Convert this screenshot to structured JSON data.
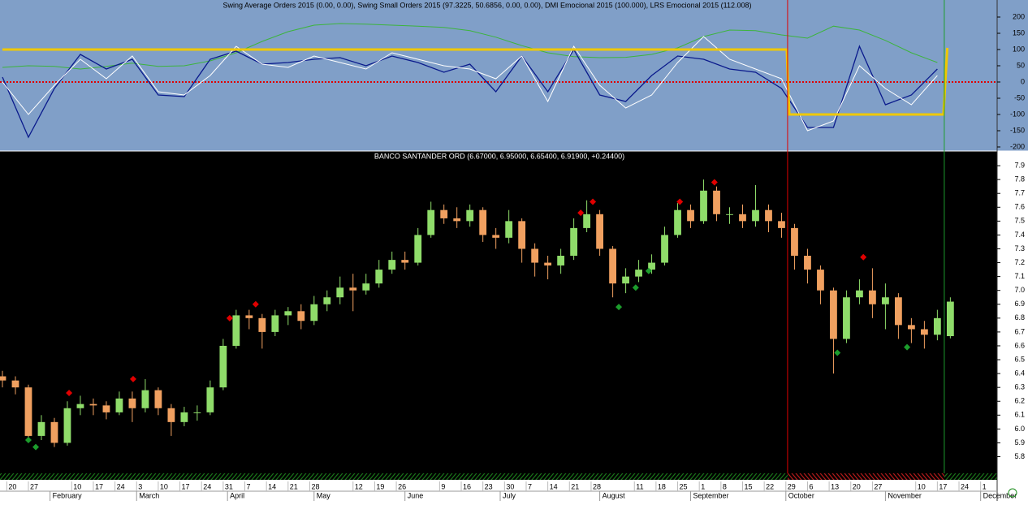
{
  "chart_data": [
    {
      "type": "line",
      "title": "Swing Average Orders 2015 (0.00, 0.00), Swing Small Orders 2015 (97.3225, 50.6856, 0.00, 0.00), DMI Emocional 2015 (100.000), LRS Emocional 2015 (112.008)",
      "xlim": [
        0,
        230
      ],
      "ylim": [
        -210,
        250
      ],
      "yticks": [
        200,
        150,
        100,
        50,
        0,
        -50,
        -100,
        -150,
        -200
      ],
      "zero_line": 0,
      "zero_color": "#e00000",
      "series": [
        {
          "color": "#3cb43c",
          "width": 1,
          "x": [
            0,
            6,
            12,
            18,
            24,
            30,
            36,
            42,
            48,
            54,
            60,
            66,
            72,
            78,
            84,
            90,
            96,
            102,
            108,
            114,
            120,
            126,
            132,
            138,
            144,
            150,
            156,
            162,
            168,
            174,
            180,
            186,
            192,
            198,
            204,
            210,
            216
          ],
          "values": [
            45,
            50,
            48,
            40,
            48,
            58,
            48,
            50,
            65,
            90,
            125,
            155,
            175,
            180,
            178,
            175,
            172,
            168,
            158,
            138,
            112,
            90,
            78,
            75,
            76,
            85,
            105,
            140,
            160,
            158,
            145,
            135,
            172,
            160,
            128,
            90,
            60
          ]
        },
        {
          "color": "#0a1a8c",
          "width": 1.3,
          "x": [
            0,
            6,
            12,
            18,
            24,
            30,
            36,
            42,
            48,
            54,
            60,
            66,
            72,
            78,
            84,
            90,
            96,
            102,
            108,
            114,
            120,
            126,
            132,
            138,
            144,
            150,
            156,
            162,
            168,
            174,
            180,
            186,
            192,
            198,
            204,
            210,
            216
          ],
          "values": [
            15,
            -170,
            -20,
            85,
            40,
            70,
            -40,
            -45,
            70,
            95,
            55,
            60,
            70,
            75,
            50,
            80,
            60,
            30,
            55,
            -30,
            80,
            -30,
            100,
            -40,
            -60,
            20,
            80,
            70,
            40,
            30,
            -20,
            -140,
            -140,
            110,
            -70,
            -40,
            40
          ]
        },
        {
          "color": "#ffffff",
          "width": 1,
          "x": [
            0,
            6,
            12,
            18,
            24,
            30,
            36,
            42,
            48,
            54,
            60,
            66,
            72,
            78,
            84,
            90,
            96,
            102,
            108,
            114,
            120,
            126,
            132,
            138,
            144,
            150,
            156,
            162,
            168,
            174,
            180,
            186,
            192,
            198,
            204,
            210,
            216
          ],
          "values": [
            0,
            -100,
            -10,
            70,
            10,
            80,
            -30,
            -40,
            20,
            110,
            55,
            45,
            80,
            60,
            40,
            90,
            70,
            50,
            40,
            10,
            80,
            -60,
            110,
            -10,
            -80,
            -40,
            60,
            140,
            70,
            40,
            10,
            -150,
            -120,
            50,
            -20,
            -70,
            20
          ]
        },
        {
          "color": "#f0c800",
          "width": 3,
          "x": [
            0,
            181.2,
            181.8,
            217.4,
            218.3
          ],
          "values": [
            100,
            100,
            -100,
            -100,
            105
          ]
        }
      ]
    },
    {
      "type": "candlestick",
      "title": "BANCO SANTANDER ORD (6.67000, 6.95000, 6.65400, 6.91900, +0.24400)",
      "xlim": [
        0,
        230
      ],
      "ylim": [
        5.68,
        8.0
      ],
      "yticks": [
        7.9,
        7.8,
        7.7,
        7.6,
        7.5,
        7.4,
        7.3,
        7.2,
        7.1,
        {
          "value": 7,
          "label": "7.0"
        },
        6.9,
        6.8,
        6.7,
        6.6,
        6.5,
        6.4,
        6.3,
        6.2,
        6.1,
        {
          "value": 6,
          "label": "6.0"
        },
        5.9,
        5.8
      ],
      "xticks": [
        {
          "value": 1,
          "label": "20"
        },
        {
          "value": 6,
          "label": "27"
        },
        {
          "value": 16,
          "label": "10"
        },
        {
          "value": 21,
          "label": "17"
        },
        {
          "value": 26,
          "label": "24"
        },
        {
          "value": 31,
          "label": "3"
        },
        {
          "value": 36,
          "label": "10"
        },
        {
          "value": 41,
          "label": "17"
        },
        {
          "value": 46,
          "label": "24"
        },
        {
          "value": 51,
          "label": "31"
        },
        {
          "value": 56,
          "label": "7"
        },
        {
          "value": 61,
          "label": "14"
        },
        {
          "value": 66,
          "label": "21"
        },
        {
          "value": 71,
          "label": "28"
        },
        {
          "value": 81,
          "label": "12"
        },
        {
          "value": 86,
          "label": "19"
        },
        {
          "value": 91,
          "label": "26"
        },
        {
          "value": 101,
          "label": "9"
        },
        {
          "value": 106,
          "label": "16"
        },
        {
          "value": 111,
          "label": "23"
        },
        {
          "value": 116,
          "label": "30"
        },
        {
          "value": 121,
          "label": "7"
        },
        {
          "value": 126,
          "label": "14"
        },
        {
          "value": 131,
          "label": "21"
        },
        {
          "value": 136,
          "label": "28"
        },
        {
          "value": 146,
          "label": "11"
        },
        {
          "value": 151,
          "label": "18"
        },
        {
          "value": 156,
          "label": "25"
        },
        {
          "value": 161,
          "label": "1"
        },
        {
          "value": 166,
          "label": "8"
        },
        {
          "value": 171,
          "label": "15"
        },
        {
          "value": 176,
          "label": "22"
        },
        {
          "value": 181,
          "label": "29"
        },
        {
          "value": 186,
          "label": "6"
        },
        {
          "value": 191,
          "label": "13"
        },
        {
          "value": 196,
          "label": "20"
        },
        {
          "value": 201,
          "label": "27"
        },
        {
          "value": 211,
          "label": "10"
        },
        {
          "value": 216,
          "label": "17"
        },
        {
          "value": 221,
          "label": "24"
        },
        {
          "value": 226,
          "label": "1"
        }
      ],
      "months": [
        {
          "value": 11,
          "label": "February"
        },
        {
          "value": 31,
          "label": "March"
        },
        {
          "value": 52,
          "label": "April"
        },
        {
          "value": 72,
          "label": "May"
        },
        {
          "value": 93,
          "label": "June"
        },
        {
          "value": 115,
          "label": "July"
        },
        {
          "value": 138,
          "label": "August"
        },
        {
          "value": 159,
          "label": "September"
        },
        {
          "value": 181,
          "label": "October"
        },
        {
          "value": 204,
          "label": "November"
        },
        {
          "value": 226,
          "label": "December"
        }
      ],
      "up_color": "#8fdc6a",
      "down_color": "#f0a060",
      "x": [
        0,
        3,
        6,
        9,
        12,
        15,
        18,
        21,
        24,
        27,
        30,
        33,
        36,
        39,
        42,
        45,
        48,
        51,
        54,
        57,
        60,
        63,
        66,
        69,
        72,
        75,
        78,
        81,
        84,
        87,
        90,
        93,
        96,
        99,
        102,
        105,
        108,
        111,
        114,
        117,
        120,
        123,
        126,
        129,
        132,
        135,
        138,
        141,
        144,
        147,
        150,
        153,
        156,
        159,
        162,
        165,
        168,
        171,
        174,
        177,
        180,
        183,
        186,
        189,
        192,
        195,
        198,
        201,
        204,
        207,
        210,
        213,
        216,
        219
      ],
      "open": [
        6.38,
        6.35,
        6.3,
        5.95,
        6.05,
        5.9,
        6.15,
        6.18,
        6.17,
        6.12,
        6.22,
        6.15,
        6.28,
        6.15,
        6.05,
        6.12,
        6.12,
        6.3,
        6.6,
        6.82,
        6.8,
        6.7,
        6.82,
        6.85,
        6.78,
        6.9,
        6.95,
        7.02,
        7.0,
        7.05,
        7.15,
        7.22,
        7.2,
        7.4,
        7.58,
        7.52,
        7.5,
        7.58,
        7.4,
        7.38,
        7.5,
        7.3,
        7.2,
        7.18,
        7.25,
        7.45,
        7.55,
        7.3,
        7.05,
        7.1,
        7.15,
        7.2,
        7.4,
        7.58,
        7.5,
        7.72,
        7.55,
        7.55,
        7.5,
        7.58,
        7.5,
        7.45,
        7.25,
        7.15,
        7.0,
        6.65,
        6.95,
        7.0,
        6.9,
        6.95,
        6.75,
        6.72,
        6.68,
        6.67
      ],
      "high": [
        6.42,
        6.38,
        6.32,
        6.1,
        6.08,
        6.2,
        6.24,
        6.22,
        6.2,
        6.27,
        6.27,
        6.36,
        6.3,
        6.18,
        6.16,
        6.17,
        6.35,
        6.65,
        6.86,
        6.86,
        6.83,
        6.86,
        6.88,
        6.9,
        6.96,
        7.0,
        7.1,
        7.12,
        7.12,
        7.22,
        7.28,
        7.28,
        7.45,
        7.64,
        7.62,
        7.6,
        7.62,
        7.6,
        7.45,
        7.58,
        7.52,
        7.34,
        7.25,
        7.3,
        7.52,
        7.65,
        7.58,
        7.32,
        7.16,
        7.22,
        7.26,
        7.46,
        7.63,
        7.62,
        7.8,
        7.75,
        7.6,
        7.62,
        7.76,
        7.62,
        7.56,
        7.48,
        7.3,
        7.18,
        7.02,
        7.0,
        7.08,
        7.16,
        7.05,
        6.98,
        6.8,
        6.78,
        6.86,
        6.95
      ],
      "low": [
        6.3,
        6.25,
        5.9,
        5.92,
        5.87,
        5.88,
        6.1,
        6.1,
        6.07,
        6.1,
        6.05,
        6.12,
        6.1,
        5.95,
        6.02,
        6.06,
        6.1,
        6.28,
        6.58,
        6.72,
        6.58,
        6.67,
        6.75,
        6.72,
        6.75,
        6.85,
        6.9,
        6.85,
        6.97,
        7.02,
        7.12,
        7.15,
        7.18,
        7.38,
        7.48,
        7.45,
        7.46,
        7.35,
        7.3,
        7.34,
        7.2,
        7.1,
        7.08,
        7.12,
        7.22,
        7.42,
        7.25,
        6.95,
        6.98,
        7.06,
        7.12,
        7.18,
        7.38,
        7.45,
        7.48,
        7.5,
        7.48,
        7.45,
        7.46,
        7.42,
        7.38,
        7.15,
        7.05,
        6.9,
        6.4,
        6.62,
        6.9,
        6.8,
        6.72,
        6.65,
        6.62,
        6.58,
        6.64,
        6.654
      ],
      "close": [
        6.35,
        6.3,
        5.95,
        6.05,
        5.9,
        6.15,
        6.18,
        6.17,
        6.12,
        6.22,
        6.15,
        6.28,
        6.15,
        6.05,
        6.12,
        6.12,
        6.3,
        6.6,
        6.82,
        6.8,
        6.7,
        6.82,
        6.85,
        6.78,
        6.9,
        6.95,
        7.02,
        7.0,
        7.05,
        7.15,
        7.22,
        7.2,
        7.4,
        7.58,
        7.52,
        7.5,
        7.58,
        7.4,
        7.38,
        7.5,
        7.3,
        7.2,
        7.18,
        7.25,
        7.45,
        7.55,
        7.3,
        7.05,
        7.1,
        7.15,
        7.2,
        7.4,
        7.58,
        7.5,
        7.72,
        7.55,
        7.55,
        7.5,
        7.58,
        7.5,
        7.45,
        7.25,
        7.15,
        7.0,
        6.65,
        6.95,
        7.0,
        6.9,
        6.95,
        6.75,
        6.72,
        6.68,
        6.8,
        6.919
      ],
      "signals": [
        {
          "color": "#e00000",
          "x": [
            15.4,
            30.2,
            52.5,
            58.5,
            133.6,
            136.4,
            156.5,
            164.5,
            198.9
          ],
          "values": [
            6.26,
            6.36,
            6.8,
            6.9,
            7.56,
            7.64,
            7.64,
            7.78,
            7.24
          ]
        },
        {
          "color": "#1c9c2c",
          "x": [
            6,
            7.7,
            142.4,
            146.3,
            149.3,
            192.9,
            209
          ],
          "values": [
            5.92,
            5.87,
            6.88,
            7.02,
            7.14,
            6.55,
            6.59
          ]
        }
      ],
      "vlines": [
        {
          "x": 181.4,
          "color": "#e00000"
        },
        {
          "x": 217.6,
          "color": "#1c9c2c"
        }
      ]
    }
  ]
}
